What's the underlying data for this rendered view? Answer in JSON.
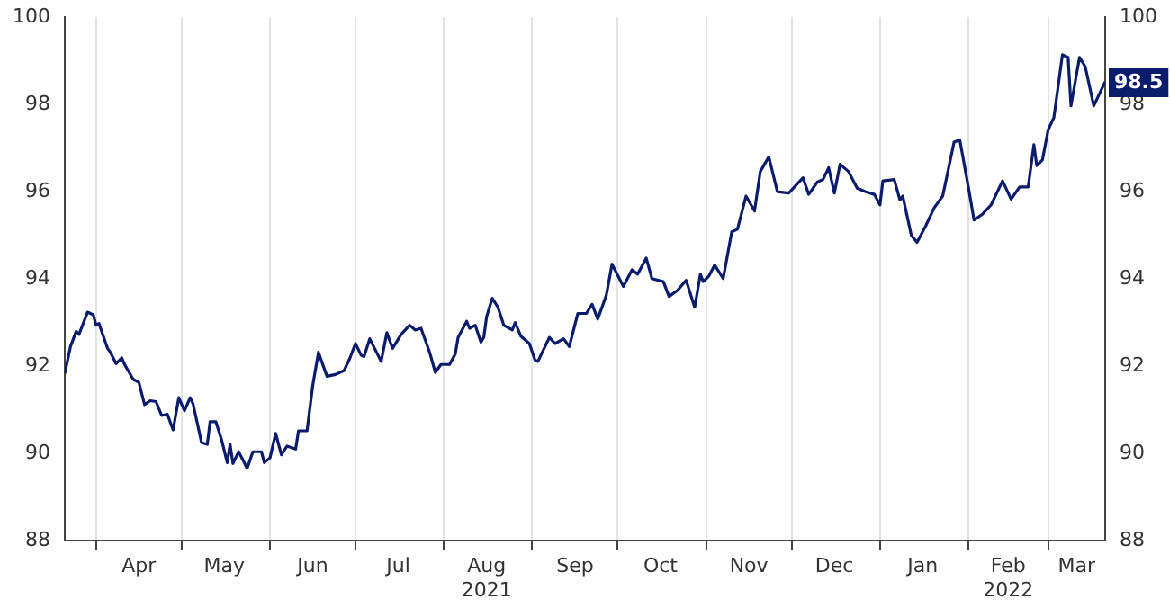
{
  "chart_data": {
    "type": "line",
    "xlim": [
      "2021-03-21",
      "2022-03-21"
    ],
    "xticks": [
      {
        "value": "2021-04-01",
        "label": null
      },
      {
        "value": "2021-04-16",
        "label": "Apr"
      },
      {
        "value": "2021-05-01",
        "label": null
      },
      {
        "value": "2021-05-16",
        "label": "May"
      },
      {
        "value": "2021-06-01",
        "label": null
      },
      {
        "value": "2021-06-16",
        "label": "Jun"
      },
      {
        "value": "2021-07-01",
        "label": null
      },
      {
        "value": "2021-07-16",
        "label": "Jul"
      },
      {
        "value": "2021-08-01",
        "label": null
      },
      {
        "value": "2021-08-16",
        "label": "Aug\n2021"
      },
      {
        "value": "2021-09-01",
        "label": null
      },
      {
        "value": "2021-09-16",
        "label": "Sep"
      },
      {
        "value": "2021-10-01",
        "label": null
      },
      {
        "value": "2021-10-16",
        "label": "Oct"
      },
      {
        "value": "2021-11-01",
        "label": null
      },
      {
        "value": "2021-11-16",
        "label": "Nov"
      },
      {
        "value": "2021-12-01",
        "label": null
      },
      {
        "value": "2021-12-16",
        "label": "Dec"
      },
      {
        "value": "2022-01-01",
        "label": null
      },
      {
        "value": "2022-01-16",
        "label": "Jan"
      },
      {
        "value": "2022-02-01",
        "label": null
      },
      {
        "value": "2022-02-15",
        "label": "Feb\n2022"
      },
      {
        "value": "2022-03-01",
        "label": null
      },
      {
        "value": "2022-03-11",
        "label": "Mar"
      }
    ],
    "ylim": [
      88,
      100
    ],
    "yticks": [
      88,
      90,
      92,
      94,
      96,
      98,
      100
    ],
    "y2lim": [
      88,
      100
    ],
    "y2ticks": [
      88,
      90,
      92,
      94,
      96,
      98,
      100
    ],
    "grid": "x",
    "marker": "none",
    "line_style": "solid",
    "annotations": [
      {
        "text": "98.5",
        "x": "2022-03-21",
        "y": 98.5
      }
    ],
    "series": [
      {
        "color": "#0c1c6c",
        "x": [
          "2021-03-21",
          "2021-03-23",
          "2021-03-25",
          "2021-03-26",
          "2021-03-29",
          "2021-03-31",
          "2021-04-01",
          "2021-04-02",
          "2021-04-05",
          "2021-04-06",
          "2021-04-08",
          "2021-04-10",
          "2021-04-11",
          "2021-04-14",
          "2021-04-16",
          "2021-04-18",
          "2021-04-20",
          "2021-04-22",
          "2021-04-24",
          "2021-04-26",
          "2021-04-28",
          "2021-04-30",
          "2021-05-02",
          "2021-05-04",
          "2021-05-05",
          "2021-05-08",
          "2021-05-10",
          "2021-05-11",
          "2021-05-13",
          "2021-05-15",
          "2021-05-17",
          "2021-05-18",
          "2021-05-19",
          "2021-05-21",
          "2021-05-24",
          "2021-05-26",
          "2021-05-29",
          "2021-05-30",
          "2021-06-01",
          "2021-06-03",
          "2021-06-05",
          "2021-06-07",
          "2021-06-10",
          "2021-06-11",
          "2021-06-14",
          "2021-06-16",
          "2021-06-18",
          "2021-06-21",
          "2021-06-24",
          "2021-06-27",
          "2021-06-29",
          "2021-07-01",
          "2021-07-03",
          "2021-07-04",
          "2021-07-06",
          "2021-07-10",
          "2021-07-12",
          "2021-07-14",
          "2021-07-17",
          "2021-07-20",
          "2021-07-22",
          "2021-07-24",
          "2021-07-27",
          "2021-07-29",
          "2021-07-31",
          "2021-08-03",
          "2021-08-05",
          "2021-08-06",
          "2021-08-09",
          "2021-08-10",
          "2021-08-12",
          "2021-08-14",
          "2021-08-15",
          "2021-08-16",
          "2021-08-18",
          "2021-08-20",
          "2021-08-22",
          "2021-08-25",
          "2021-08-26",
          "2021-08-28",
          "2021-08-31",
          "2021-09-02",
          "2021-09-03",
          "2021-09-07",
          "2021-09-09",
          "2021-09-12",
          "2021-09-14",
          "2021-09-17",
          "2021-09-20",
          "2021-09-22",
          "2021-09-24",
          "2021-09-27",
          "2021-09-29",
          "2021-10-03",
          "2021-10-06",
          "2021-10-08",
          "2021-10-11",
          "2021-10-13",
          "2021-10-17",
          "2021-10-19",
          "2021-10-22",
          "2021-10-25",
          "2021-10-28",
          "2021-10-30",
          "2021-10-31",
          "2021-11-02",
          "2021-11-04",
          "2021-11-07",
          "2021-11-10",
          "2021-11-12",
          "2021-11-15",
          "2021-11-18",
          "2021-11-20",
          "2021-11-23",
          "2021-11-26",
          "2021-11-30",
          "2021-12-05",
          "2021-12-07",
          "2021-12-10",
          "2021-12-12",
          "2021-12-14",
          "2021-12-16",
          "2021-12-18",
          "2021-12-21",
          "2021-12-24",
          "2021-12-27",
          "2021-12-30",
          "2022-01-01",
          "2022-01-02",
          "2022-01-06",
          "2022-01-08",
          "2022-01-09",
          "2022-01-12",
          "2022-01-14",
          "2022-01-17",
          "2022-01-20",
          "2022-01-23",
          "2022-01-27",
          "2022-01-29",
          "2022-02-01",
          "2022-02-03",
          "2022-02-06",
          "2022-02-09",
          "2022-02-13",
          "2022-02-16",
          "2022-02-19",
          "2022-02-22",
          "2022-02-24",
          "2022-02-25",
          "2022-02-27",
          "2022-03-01",
          "2022-03-03",
          "2022-03-06",
          "2022-03-08",
          "2022-03-09",
          "2022-03-12",
          "2022-03-14",
          "2022-03-17",
          "2022-03-21"
        ],
        "values": [
          91.83,
          92.45,
          92.8,
          92.73,
          93.24,
          93.18,
          92.94,
          92.98,
          92.41,
          92.32,
          92.06,
          92.19,
          92.04,
          91.7,
          91.63,
          91.12,
          91.21,
          91.19,
          90.87,
          90.9,
          90.54,
          91.28,
          90.98,
          91.28,
          91.14,
          90.25,
          90.21,
          90.73,
          90.73,
          90.32,
          89.79,
          90.21,
          89.77,
          90.04,
          89.66,
          90.04,
          90.04,
          89.79,
          89.9,
          90.46,
          89.97,
          90.17,
          90.1,
          90.52,
          90.52,
          91.56,
          92.32,
          91.77,
          91.81,
          91.9,
          92.18,
          92.52,
          92.25,
          92.22,
          92.63,
          92.11,
          92.77,
          92.41,
          92.73,
          92.94,
          92.83,
          92.87,
          92.32,
          91.86,
          92.04,
          92.04,
          92.28,
          92.66,
          93.03,
          92.87,
          92.94,
          92.55,
          92.66,
          93.14,
          93.56,
          93.35,
          92.94,
          92.83,
          93.0,
          92.69,
          92.52,
          92.14,
          92.11,
          92.66,
          92.52,
          92.63,
          92.45,
          93.21,
          93.21,
          93.42,
          93.08,
          93.63,
          94.34,
          93.83,
          94.21,
          94.11,
          94.48,
          94.01,
          93.94,
          93.6,
          93.74,
          93.97,
          93.35,
          94.11,
          93.94,
          94.07,
          94.32,
          94.01,
          95.08,
          95.14,
          95.9,
          95.56,
          96.46,
          96.8,
          96.0,
          95.97,
          96.32,
          95.94,
          96.22,
          96.28,
          96.55,
          95.97,
          96.63,
          96.46,
          96.08,
          96.0,
          95.94,
          95.7,
          96.25,
          96.28,
          95.81,
          95.9,
          95.0,
          94.84,
          95.21,
          95.63,
          95.9,
          97.14,
          97.19,
          96.11,
          95.35,
          95.49,
          95.7,
          96.25,
          95.83,
          96.11,
          96.11,
          97.08,
          96.6,
          96.73,
          97.42,
          97.7,
          99.14,
          99.08,
          97.97,
          99.08,
          98.87,
          97.97,
          98.52
        ]
      }
    ]
  }
}
